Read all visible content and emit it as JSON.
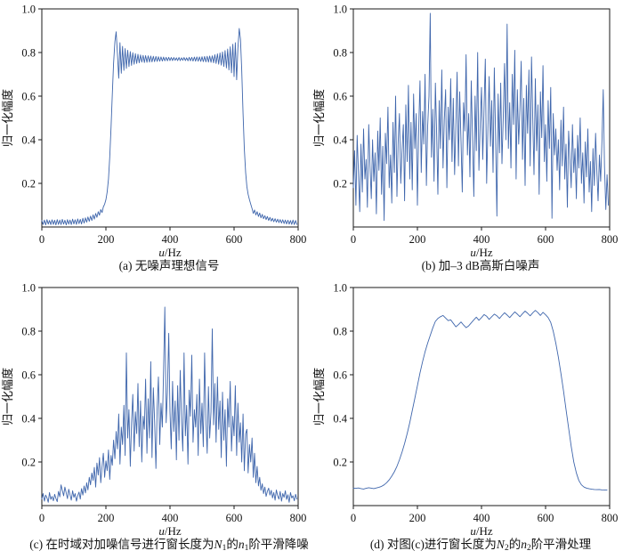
{
  "figure": {
    "line_color": "#3f66ac",
    "axis_color": "#1a1a1a",
    "background": "#ffffff",
    "text_color": "#111111"
  },
  "chart_data": [
    {
      "id": "a",
      "type": "line",
      "title": "(a) 无噪声理想信号",
      "cap": {
        "pre": "(a) 无噪声理想信号"
      },
      "xlabel_var": "u",
      "xlabel_rest": "/Hz",
      "ylabel": "归一化幅度",
      "xlim": [
        0,
        800
      ],
      "ylim": [
        0,
        1
      ],
      "xticks": [
        0,
        200,
        400,
        600,
        800
      ],
      "yticks": [
        0.2,
        0.4,
        0.6,
        0.8,
        1.0
      ],
      "grid": false,
      "x0": 0,
      "dx": 4,
      "values": [
        0.03,
        0.012,
        0.032,
        0.01,
        0.034,
        0.013,
        0.03,
        0.011,
        0.033,
        0.012,
        0.031,
        0.01,
        0.034,
        0.012,
        0.032,
        0.011,
        0.035,
        0.013,
        0.031,
        0.01,
        0.034,
        0.013,
        0.032,
        0.011,
        0.036,
        0.014,
        0.033,
        0.012,
        0.037,
        0.015,
        0.035,
        0.014,
        0.04,
        0.018,
        0.042,
        0.022,
        0.046,
        0.026,
        0.05,
        0.03,
        0.056,
        0.036,
        0.062,
        0.044,
        0.07,
        0.054,
        0.08,
        0.066,
        0.092,
        0.105,
        0.125,
        0.16,
        0.22,
        0.32,
        0.46,
        0.61,
        0.75,
        0.85,
        0.895,
        0.79,
        0.682,
        0.845,
        0.705,
        0.828,
        0.718,
        0.818,
        0.727,
        0.81,
        0.735,
        0.804,
        0.741,
        0.799,
        0.746,
        0.795,
        0.75,
        0.792,
        0.753,
        0.789,
        0.756,
        0.787,
        0.754,
        0.786,
        0.755,
        0.785,
        0.756,
        0.784,
        0.757,
        0.783,
        0.758,
        0.782,
        0.759,
        0.781,
        0.76,
        0.78,
        0.761,
        0.779,
        0.762,
        0.778,
        0.762,
        0.778,
        0.763,
        0.777,
        0.763,
        0.777,
        0.764,
        0.776,
        0.763,
        0.777,
        0.763,
        0.776,
        0.764,
        0.777,
        0.763,
        0.776,
        0.762,
        0.778,
        0.762,
        0.778,
        0.761,
        0.779,
        0.76,
        0.78,
        0.76,
        0.78,
        0.759,
        0.781,
        0.758,
        0.782,
        0.757,
        0.783,
        0.756,
        0.784,
        0.755,
        0.785,
        0.753,
        0.79,
        0.75,
        0.794,
        0.746,
        0.798,
        0.742,
        0.803,
        0.736,
        0.809,
        0.729,
        0.816,
        0.72,
        0.826,
        0.707,
        0.838,
        0.69,
        0.845,
        0.675,
        0.82,
        0.91,
        0.86,
        0.72,
        0.52,
        0.36,
        0.25,
        0.185,
        0.15,
        0.125,
        0.105,
        0.085,
        0.062,
        0.078,
        0.055,
        0.07,
        0.048,
        0.064,
        0.042,
        0.058,
        0.038,
        0.052,
        0.034,
        0.048,
        0.03,
        0.044,
        0.027,
        0.04,
        0.024,
        0.038,
        0.022,
        0.036,
        0.02,
        0.034,
        0.018,
        0.033,
        0.016,
        0.032,
        0.014,
        0.031,
        0.013,
        0.03,
        0.012,
        0.032,
        0.011,
        0.03,
        0.012
      ]
    },
    {
      "id": "b",
      "type": "line",
      "title": "(b) 加–3 dB高斯白噪声",
      "cap": {
        "pre": "(b) 加–3 dB高斯白噪声"
      },
      "xlabel_var": "u",
      "xlabel_rest": "/Hz",
      "ylabel": "归一化幅度",
      "xlim": [
        0,
        800
      ],
      "ylim": [
        0,
        1
      ],
      "xticks": [
        0,
        200,
        400,
        600,
        800
      ],
      "yticks": [
        0.2,
        0.4,
        0.6,
        0.8,
        1.0
      ],
      "grid": false,
      "x0": 0,
      "dx": 4,
      "values": [
        0.18,
        0.35,
        0.1,
        0.42,
        0.24,
        0.07,
        0.38,
        0.16,
        0.45,
        0.22,
        0.31,
        0.09,
        0.47,
        0.28,
        0.13,
        0.4,
        0.21,
        0.34,
        0.06,
        0.44,
        0.26,
        0.5,
        0.15,
        0.37,
        0.03,
        0.43,
        0.29,
        0.55,
        0.18,
        0.33,
        0.11,
        0.48,
        0.25,
        0.6,
        0.14,
        0.39,
        0.52,
        0.2,
        0.35,
        0.47,
        0.12,
        0.56,
        0.3,
        0.65,
        0.22,
        0.48,
        0.17,
        0.61,
        0.36,
        0.52,
        0.1,
        0.44,
        0.67,
        0.25,
        0.53,
        0.38,
        0.7,
        0.19,
        0.46,
        0.6,
        0.98,
        0.32,
        0.54,
        0.21,
        0.66,
        0.43,
        0.15,
        0.58,
        0.36,
        0.72,
        0.27,
        0.49,
        0.63,
        0.18,
        0.55,
        0.4,
        0.68,
        0.3,
        0.59,
        0.24,
        0.46,
        0.71,
        0.28,
        0.62,
        0.39,
        0.16,
        0.57,
        0.44,
        0.79,
        0.33,
        0.52,
        0.23,
        0.67,
        0.41,
        0.14,
        0.6,
        0.35,
        0.8,
        0.26,
        0.48,
        0.64,
        0.31,
        0.55,
        0.77,
        0.2,
        0.45,
        0.69,
        0.37,
        0.58,
        0.25,
        0.73,
        0.42,
        0.05,
        0.61,
        0.34,
        0.66,
        0.29,
        0.51,
        0.75,
        0.4,
        0.93,
        0.36,
        0.57,
        0.27,
        0.7,
        0.47,
        0.81,
        0.22,
        0.63,
        0.38,
        0.54,
        0.76,
        0.31,
        0.59,
        0.19,
        0.65,
        0.43,
        0.72,
        0.28,
        0.78,
        0.5,
        0.24,
        0.68,
        0.35,
        0.56,
        0.15,
        0.62,
        0.41,
        0.74,
        0.3,
        0.47,
        0.21,
        0.58,
        0.36,
        0.64,
        0.04,
        0.52,
        0.33,
        0.45,
        0.26,
        0.4,
        0.17,
        0.49,
        0.28,
        0.55,
        0.22,
        0.38,
        0.09,
        0.44,
        0.31,
        0.18,
        0.47,
        0.25,
        0.36,
        0.13,
        0.42,
        0.27,
        0.5,
        0.2,
        0.34,
        0.11,
        0.39,
        0.23,
        0.45,
        0.16,
        0.3,
        0.07,
        0.36,
        0.19,
        0.43,
        0.26,
        0.12,
        0.33,
        0.21,
        0.4,
        0.63,
        0.28,
        0.08,
        0.24,
        0.1
      ]
    },
    {
      "id": "c",
      "type": "line",
      "title": "(c) 在时域对加噪信号进行窗长度为N1的n1阶平滑降噪",
      "cap": {
        "pre": "(c) 在时域对加噪信号进行窗长度为",
        "N": "N",
        "N_sub": "1",
        "mid": "的",
        "n": "n",
        "n_sub": "1",
        "post": "阶平滑降噪"
      },
      "xlabel_var": "u",
      "xlabel_rest": "/Hz",
      "ylabel": "归一化幅度",
      "xlim": [
        0,
        800
      ],
      "ylim": [
        0,
        1
      ],
      "xticks": [
        0,
        200,
        400,
        600,
        800
      ],
      "yticks": [
        0.2,
        0.4,
        0.6,
        0.8,
        1.0
      ],
      "grid": false,
      "x0": 0,
      "dx": 4,
      "values": [
        0.03,
        0.055,
        0.02,
        0.048,
        0.035,
        0.015,
        0.06,
        0.028,
        0.042,
        0.022,
        0.052,
        0.033,
        0.018,
        0.065,
        0.04,
        0.095,
        0.07,
        0.045,
        0.085,
        0.058,
        0.032,
        0.075,
        0.05,
        0.025,
        0.068,
        0.038,
        0.055,
        0.02,
        0.045,
        0.062,
        0.03,
        0.078,
        0.048,
        0.09,
        0.058,
        0.105,
        0.072,
        0.13,
        0.095,
        0.15,
        0.115,
        0.175,
        0.085,
        0.195,
        0.14,
        0.22,
        0.105,
        0.18,
        0.24,
        0.13,
        0.205,
        0.16,
        0.255,
        0.12,
        0.23,
        0.185,
        0.3,
        0.215,
        0.34,
        0.26,
        0.42,
        0.19,
        0.36,
        0.28,
        0.46,
        0.23,
        0.7,
        0.31,
        0.44,
        0.18,
        0.38,
        0.51,
        0.25,
        0.43,
        0.33,
        0.56,
        0.27,
        0.48,
        0.2,
        0.41,
        0.35,
        0.58,
        0.24,
        0.49,
        0.31,
        0.66,
        0.22,
        0.54,
        0.39,
        0.17,
        0.45,
        0.59,
        0.28,
        0.47,
        0.36,
        0.62,
        0.91,
        0.38,
        0.52,
        0.79,
        0.43,
        0.26,
        0.57,
        0.34,
        0.48,
        0.21,
        0.55,
        0.3,
        0.62,
        0.38,
        0.25,
        0.7,
        0.32,
        0.46,
        0.19,
        0.53,
        0.41,
        0.69,
        0.29,
        0.44,
        0.36,
        0.51,
        0.23,
        0.58,
        0.33,
        0.47,
        0.27,
        0.7,
        0.4,
        0.24,
        0.545,
        0.31,
        0.43,
        0.81,
        0.37,
        0.56,
        0.29,
        0.59,
        0.35,
        0.48,
        0.22,
        0.52,
        0.3,
        0.44,
        0.18,
        0.49,
        0.36,
        0.57,
        0.25,
        0.41,
        0.32,
        0.55,
        0.23,
        0.47,
        0.29,
        0.38,
        0.2,
        0.42,
        0.16,
        0.33,
        0.35,
        0.15,
        0.28,
        0.2,
        0.31,
        0.13,
        0.24,
        0.105,
        0.18,
        0.09,
        0.13,
        0.07,
        0.1,
        0.055,
        0.085,
        0.042,
        0.065,
        0.08,
        0.048,
        0.07,
        0.035,
        0.06,
        0.025,
        0.072,
        0.045,
        0.03,
        0.065,
        0.02,
        0.055,
        0.038,
        0.068,
        0.028,
        0.05,
        0.015,
        0.06,
        0.035,
        0.045,
        0.022,
        0.052,
        0.03
      ]
    },
    {
      "id": "d",
      "type": "line",
      "title": "(d) 对图(c)进行窗长度为N2的n2阶平滑处理",
      "cap": {
        "pre": "(d) 对图(c)进行窗长度为",
        "N": "N",
        "N_sub": "2",
        "mid": "的",
        "n": "n",
        "n_sub": "2",
        "post": "阶平滑处理"
      },
      "xlabel_var": "u",
      "xlabel_rest": "/Hz",
      "ylabel": "归一化幅度",
      "xlim": [
        0,
        800
      ],
      "ylim": [
        0,
        1
      ],
      "xticks": [
        0,
        200,
        400,
        600,
        800
      ],
      "yticks": [
        0.2,
        0.4,
        0.6,
        0.8,
        1.0
      ],
      "grid": false,
      "x0": 0,
      "dx": 8,
      "values": [
        0.08,
        0.079,
        0.081,
        0.078,
        0.076,
        0.079,
        0.082,
        0.08,
        0.078,
        0.081,
        0.084,
        0.088,
        0.095,
        0.105,
        0.118,
        0.135,
        0.155,
        0.18,
        0.21,
        0.245,
        0.285,
        0.33,
        0.38,
        0.435,
        0.492,
        0.55,
        0.608,
        0.66,
        0.705,
        0.745,
        0.78,
        0.815,
        0.845,
        0.858,
        0.866,
        0.872,
        0.86,
        0.848,
        0.852,
        0.836,
        0.82,
        0.83,
        0.842,
        0.828,
        0.816,
        0.824,
        0.838,
        0.852,
        0.864,
        0.85,
        0.862,
        0.876,
        0.868,
        0.854,
        0.866,
        0.878,
        0.87,
        0.858,
        0.872,
        0.884,
        0.874,
        0.862,
        0.876,
        0.888,
        0.878,
        0.866,
        0.88,
        0.892,
        0.882,
        0.87,
        0.884,
        0.895,
        0.885,
        0.872,
        0.886,
        0.875,
        0.862,
        0.84,
        0.8,
        0.745,
        0.68,
        0.605,
        0.525,
        0.44,
        0.355,
        0.272,
        0.2,
        0.15,
        0.115,
        0.095,
        0.085,
        0.08,
        0.077,
        0.075,
        0.074,
        0.073,
        0.074,
        0.072,
        0.071,
        0.072
      ]
    }
  ]
}
